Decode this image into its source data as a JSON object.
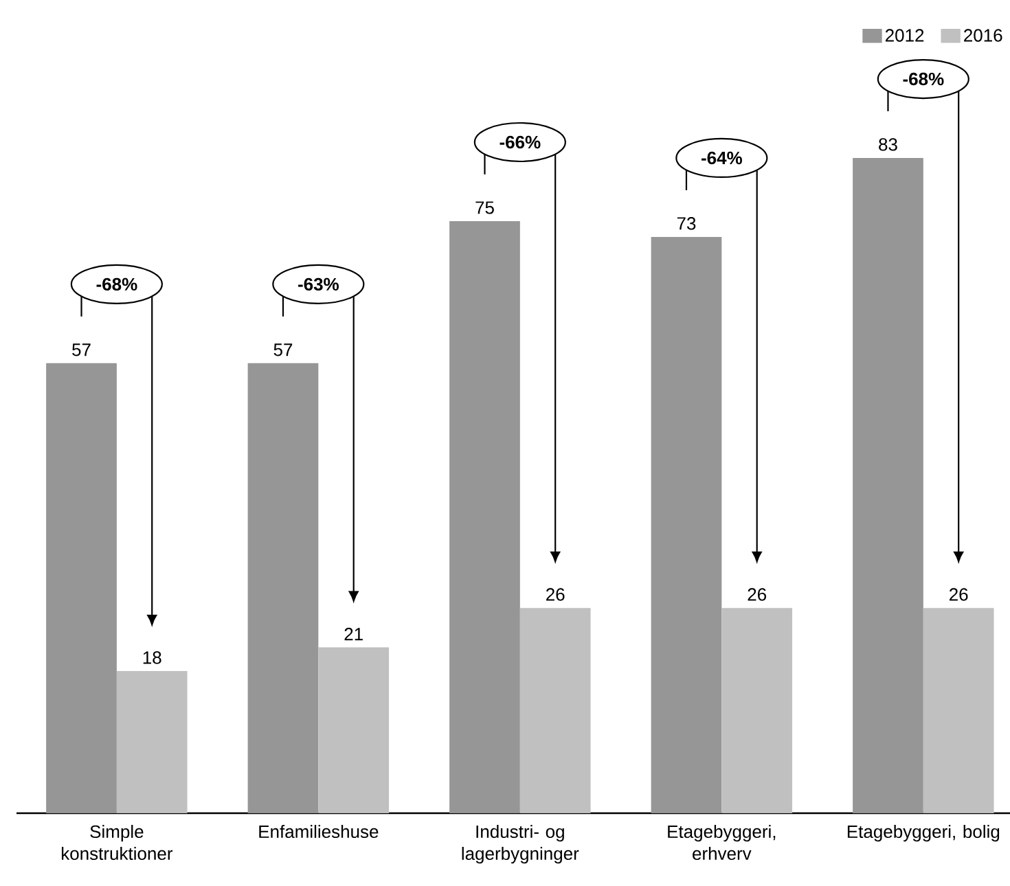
{
  "chart_data": {
    "type": "bar",
    "categories": [
      "Simple konstruktioner",
      "Enfamilieshuse",
      "Industri- og lagerbygninger",
      "Etagebyggeri, erhverv",
      "Etagebyggeri, bolig"
    ],
    "series": [
      {
        "name": "2012",
        "color": "#969696",
        "values": [
          57,
          57,
          75,
          73,
          83
        ]
      },
      {
        "name": "2016",
        "color": "#c0c0c0",
        "values": [
          18,
          21,
          26,
          26,
          26
        ]
      }
    ],
    "data_labels": true,
    "legend": "top right",
    "tick_labels": "x",
    "annotations": [
      "-68%",
      "-63%",
      "-66%",
      "-64%",
      "-68%"
    ]
  }
}
